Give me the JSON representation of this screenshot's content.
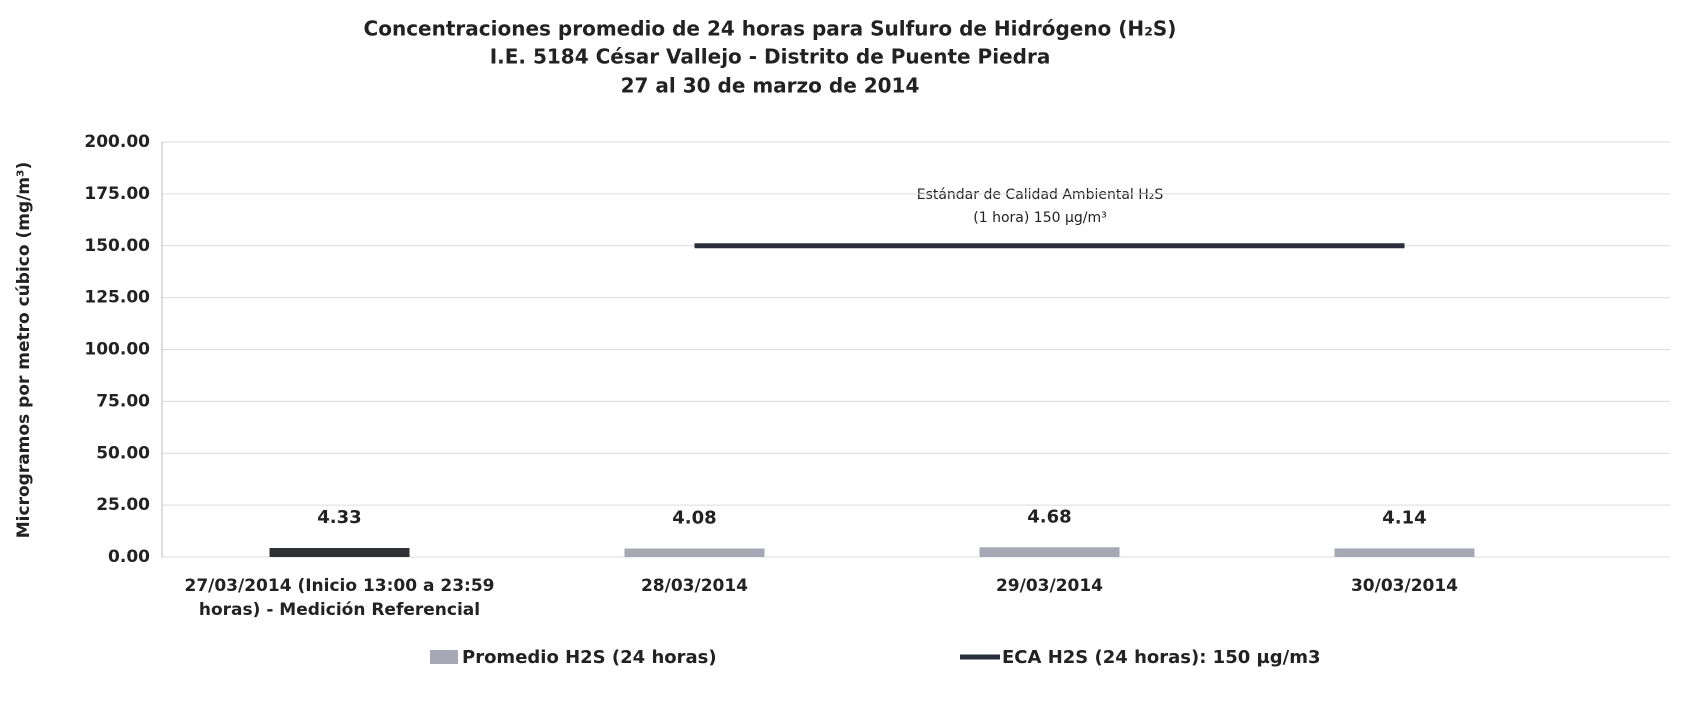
{
  "chart_data": {
    "type": "bar",
    "title": "Concentraciones promedio de 24 horas para Sulfuro de Hidrógeno (H₂S)",
    "subtitle": [
      "I.E. 5184 César Vallejo - Distrito de Puente Piedra",
      "27 al 30 de marzo de 2014"
    ],
    "y_label": "Microgramos por metro cúbico (mg/m³)",
    "annotations": [
      "Estándar de Calidad Ambiental  H₂S",
      "(1 hora)  150 µg/m³"
    ],
    "categories": [
      "27/03/2014 (Inicio 13:00 a 23:59 horas) - Medición Referencial",
      "28/03/2014",
      "29/03/2014",
      "30/03/2014"
    ],
    "series": [
      {
        "name": "Promedio H2S (24 horas)",
        "type": "bar",
        "color": "#a7a8b5",
        "colors": [
          "#2e3034",
          "#a7a8b5",
          "#a7a8b5",
          "#a7a8b5"
        ],
        "values": [
          4.33,
          4.08,
          4.68,
          4.14
        ]
      },
      {
        "name": "ECA H2S (24 horas): 150 µg/m3",
        "type": "line",
        "color": "#2a2e3b",
        "values": [
          null,
          150,
          150,
          150
        ]
      }
    ],
    "ylim": [
      0,
      200
    ],
    "yticks": [
      {
        "value": 0,
        "label": "0.00"
      },
      {
        "value": 25,
        "label": "25.00"
      },
      {
        "value": 50,
        "label": "50.00"
      },
      {
        "value": 75,
        "label": "75.00"
      },
      {
        "value": 100,
        "label": "100.00"
      },
      {
        "value": 125,
        "label": "125.00"
      },
      {
        "value": 150,
        "label": "150.00"
      },
      {
        "value": 175,
        "label": "175.00"
      },
      {
        "value": 200,
        "label": "200.00"
      }
    ],
    "grid": true,
    "legend": "bottom"
  }
}
